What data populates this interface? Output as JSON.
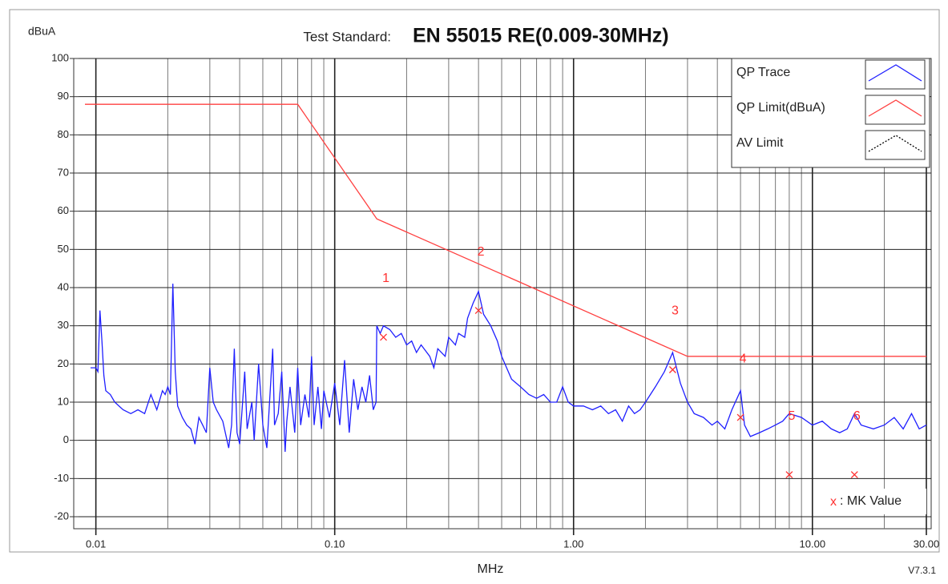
{
  "chart_data": {
    "type": "line",
    "title_label": "Test Standard:",
    "title": "EN 55015 RE(0.009-30MHz)",
    "y_label": "dBuA",
    "x_label": "MHz",
    "version": "V7.3.1",
    "log_x": true,
    "grid": true,
    "legend": "top-right",
    "xlim": [
      0.009,
      30
    ],
    "ylim": [
      -20,
      100
    ],
    "xticks": [
      {
        "value": 0.01,
        "label": "0.01"
      },
      {
        "value": 0.1,
        "label": "0.10"
      },
      {
        "value": 1,
        "label": "1.00"
      },
      {
        "value": 10,
        "label": "10.00"
      },
      {
        "value": 30,
        "label": "30.00"
      }
    ],
    "xminor": [
      0.02,
      0.03,
      0.04,
      0.05,
      0.06,
      0.07,
      0.08,
      0.09,
      0.2,
      0.3,
      0.4,
      0.5,
      0.6,
      0.7,
      0.8,
      0.9,
      2,
      3,
      4,
      5,
      6,
      7,
      8,
      9,
      20
    ],
    "yticks": [
      -20,
      -10,
      0,
      10,
      20,
      30,
      40,
      50,
      60,
      70,
      80,
      90,
      100
    ],
    "series": [
      {
        "name": "QP Trace",
        "color": "#1f1fff",
        "x": [
          0.0095,
          0.01,
          0.0102,
          0.0104,
          0.0106,
          0.0108,
          0.011,
          0.0115,
          0.012,
          0.013,
          0.014,
          0.015,
          0.016,
          0.017,
          0.018,
          0.019,
          0.0195,
          0.02,
          0.0205,
          0.021,
          0.0215,
          0.022,
          0.023,
          0.024,
          0.025,
          0.026,
          0.027,
          0.028,
          0.029,
          0.03,
          0.031,
          0.032,
          0.034,
          0.036,
          0.037,
          0.038,
          0.039,
          0.04,
          0.042,
          0.043,
          0.045,
          0.046,
          0.048,
          0.05,
          0.052,
          0.055,
          0.056,
          0.058,
          0.06,
          0.062,
          0.063,
          0.065,
          0.068,
          0.07,
          0.072,
          0.075,
          0.078,
          0.08,
          0.082,
          0.085,
          0.088,
          0.09,
          0.095,
          0.1,
          0.105,
          0.11,
          0.115,
          0.12,
          0.125,
          0.13,
          0.135,
          0.14,
          0.145,
          0.149,
          0.15,
          0.155,
          0.16,
          0.17,
          0.18,
          0.19,
          0.2,
          0.21,
          0.22,
          0.23,
          0.25,
          0.26,
          0.27,
          0.29,
          0.3,
          0.32,
          0.33,
          0.35,
          0.36,
          0.38,
          0.4,
          0.42,
          0.45,
          0.48,
          0.5,
          0.55,
          0.6,
          0.65,
          0.7,
          0.75,
          0.8,
          0.85,
          0.9,
          0.95,
          1,
          1.1,
          1.2,
          1.3,
          1.4,
          1.5,
          1.6,
          1.7,
          1.8,
          1.9,
          2,
          2.2,
          2.4,
          2.6,
          2.8,
          3,
          3.2,
          3.5,
          3.8,
          4,
          4.3,
          4.6,
          5,
          5.2,
          5.5,
          6,
          6.5,
          7,
          7.5,
          8,
          9,
          10,
          11,
          12,
          13,
          14,
          15,
          16,
          18,
          20,
          22,
          24,
          26,
          28,
          30
        ],
        "values": [
          19,
          19,
          18,
          34,
          26,
          17,
          13,
          12,
          10,
          8,
          7,
          8,
          7,
          12,
          8,
          13,
          12,
          14,
          12,
          41,
          18,
          9,
          6,
          4,
          3,
          -1,
          6,
          4,
          2,
          19,
          10,
          8,
          5,
          -2,
          4,
          24,
          2,
          -1,
          18,
          3,
          10,
          0,
          20,
          4,
          -2,
          24,
          4,
          7,
          18,
          -3,
          5,
          14,
          2,
          19,
          4,
          12,
          6,
          22,
          4,
          14,
          3,
          13,
          6,
          15,
          4,
          21,
          2,
          16,
          8,
          14,
          10,
          17,
          8,
          10,
          30,
          28,
          30,
          29,
          27,
          28,
          25,
          26,
          23,
          25,
          22,
          19,
          24,
          22,
          27,
          25,
          28,
          27,
          32,
          36,
          39,
          33,
          30,
          26,
          22,
          16,
          14,
          12,
          11,
          12,
          10,
          10,
          14,
          10,
          9,
          9,
          8,
          9,
          7,
          8,
          5,
          9,
          7,
          8,
          10,
          14,
          18,
          23,
          15,
          10,
          7,
          6,
          4,
          5,
          3,
          8,
          13,
          4,
          1,
          2,
          3,
          4,
          5,
          7,
          6,
          4,
          5,
          3,
          2,
          3,
          7,
          4,
          3,
          4,
          6,
          3,
          7,
          3,
          4
        ]
      },
      {
        "name": "QP Limit(dBuA)",
        "color": "#ff4040",
        "x": [
          0.009,
          0.07,
          0.15,
          3,
          30
        ],
        "values": [
          88,
          88,
          58,
          22,
          22
        ]
      },
      {
        "name": "AV Limit",
        "color": "#000000",
        "x": [],
        "values": []
      }
    ],
    "markers": {
      "color": "#ff3030",
      "symbol": "x",
      "legend": ": MK Value",
      "labels": [
        "1",
        "2",
        "3",
        "4",
        "5",
        "6"
      ],
      "x": [
        0.16,
        0.4,
        2.6,
        5.0,
        8.0,
        15.0
      ],
      "values": [
        27,
        34,
        18.5,
        6,
        -9,
        -9
      ]
    }
  }
}
